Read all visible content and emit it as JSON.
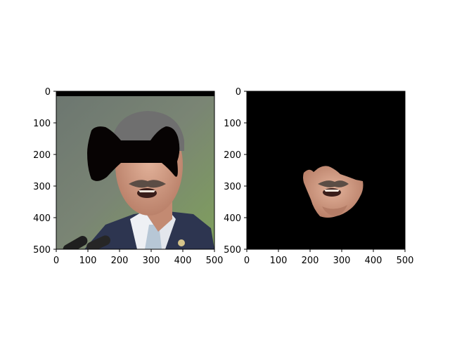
{
  "figure": {
    "panels": [
      {
        "id": "left",
        "content": "grayscale-portrait-with-black-bowtie-occluder",
        "x_ticks": [
          "0",
          "100",
          "200",
          "300",
          "400",
          "500"
        ],
        "y_ticks": [
          "0",
          "100",
          "200",
          "300",
          "400",
          "500"
        ]
      },
      {
        "id": "right",
        "content": "face-segmentation-on-black-background",
        "x_ticks": [
          "0",
          "100",
          "200",
          "300",
          "400",
          "500"
        ],
        "y_ticks": [
          "0",
          "100",
          "200",
          "300",
          "400",
          "500"
        ]
      }
    ],
    "colors": {
      "background": "#ffffff",
      "mask": "#000000",
      "skin": "#d8a38a",
      "suit": "#2d3550",
      "shirt": "#eef0f4",
      "tie": "#b7c7d6",
      "grass": "#84a85a",
      "hair": "#6f6f6f"
    },
    "icons": [
      "bowtie-mask-shape",
      "microphone-icon"
    ]
  }
}
